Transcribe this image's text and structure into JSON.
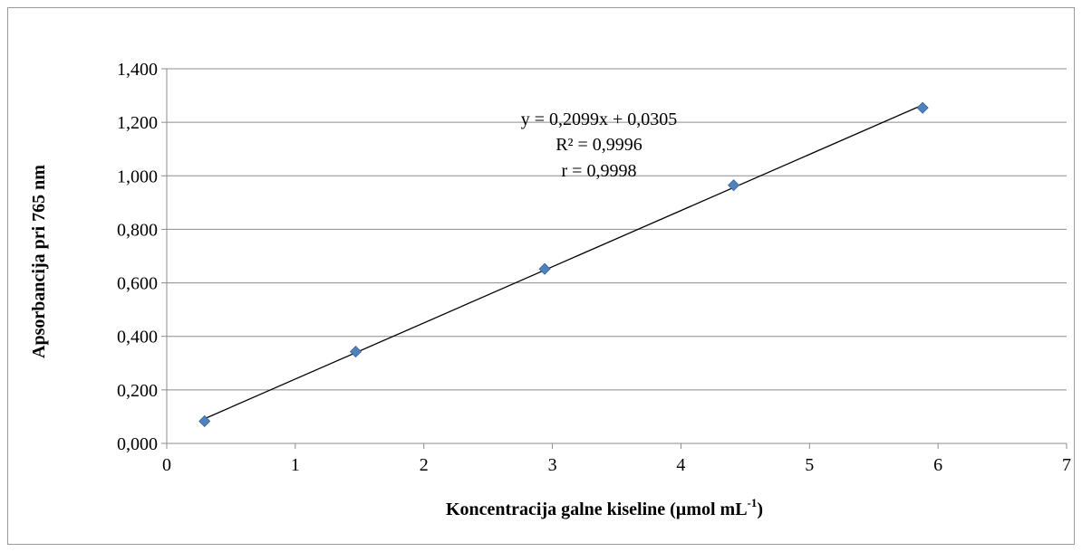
{
  "chart_data": {
    "type": "scatter",
    "title": "",
    "xlabel": "Koncentracija galne kiseline (µmol mL",
    "xlabel_sup": "-1",
    "xlabel_end": ")",
    "ylabel": "Apsorbancija pri 765 nm",
    "xlim": [
      0,
      7
    ],
    "ylim": [
      0,
      1.4
    ],
    "x_ticks": [
      0,
      1,
      2,
      3,
      4,
      5,
      6,
      7
    ],
    "y_ticks": [
      0,
      0.2,
      0.4,
      0.6,
      0.8,
      1.0,
      1.2,
      1.4
    ],
    "x_tick_labels": [
      "0",
      "1",
      "2",
      "3",
      "4",
      "5",
      "6",
      "7"
    ],
    "y_tick_labels": [
      "0,000",
      "0,200",
      "0,400",
      "0,600",
      "0,800",
      "1,000",
      "1,200",
      "1,400"
    ],
    "grid": "horizontal",
    "series": [
      {
        "x": [
          0.294,
          1.47,
          2.94,
          4.41,
          5.88
        ],
        "y": [
          0.083,
          0.343,
          0.652,
          0.965,
          1.254
        ],
        "color": "#4F81BD",
        "marker": "diamond"
      }
    ],
    "trendline": {
      "slope": 0.2099,
      "intercept": 0.0305,
      "x_range": [
        0.294,
        5.88
      ],
      "color": "#000000"
    },
    "annotations": [
      "y = 0,2099x + 0,0305",
      "R² = 0,9996",
      "r = 0,9998"
    ]
  }
}
